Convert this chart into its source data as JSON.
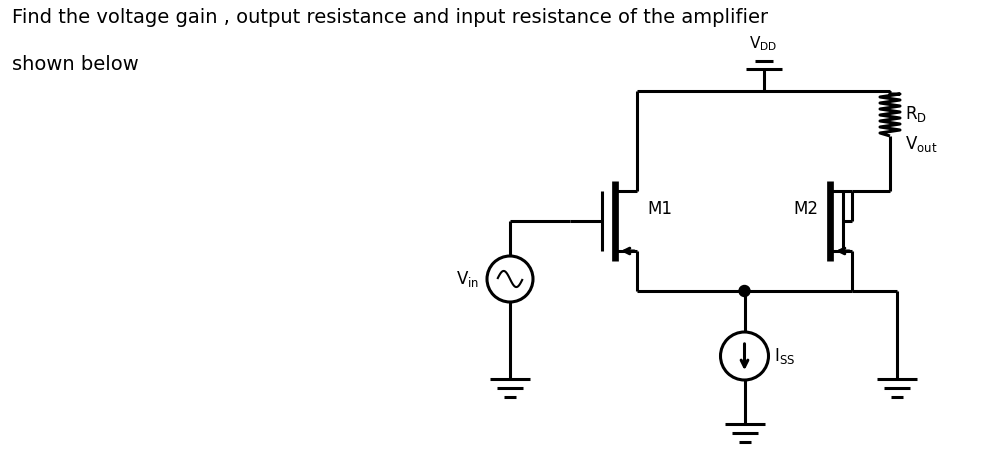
{
  "title_line1": "Find the voltage gain , output resistance and input resistance of the amplifier",
  "title_line2": "shown below",
  "title_fontsize": 14,
  "title_color": "#000000",
  "bg_color": "#ffffff",
  "line_color": "#000000",
  "line_width": 2.2,
  "fig_width": 10.02,
  "fig_height": 4.76,
  "dpi": 100,
  "label_M1": "M1",
  "label_M2": "M2",
  "label_VDD": "V$_\\mathregular{DD}$",
  "label_RD": "R$_\\mathregular{D}$",
  "label_Vout": "V$_\\mathregular{out}$",
  "label_Vin": "V$_\\mathregular{in}$",
  "label_ISS": "I$_\\mathregular{SS}$"
}
